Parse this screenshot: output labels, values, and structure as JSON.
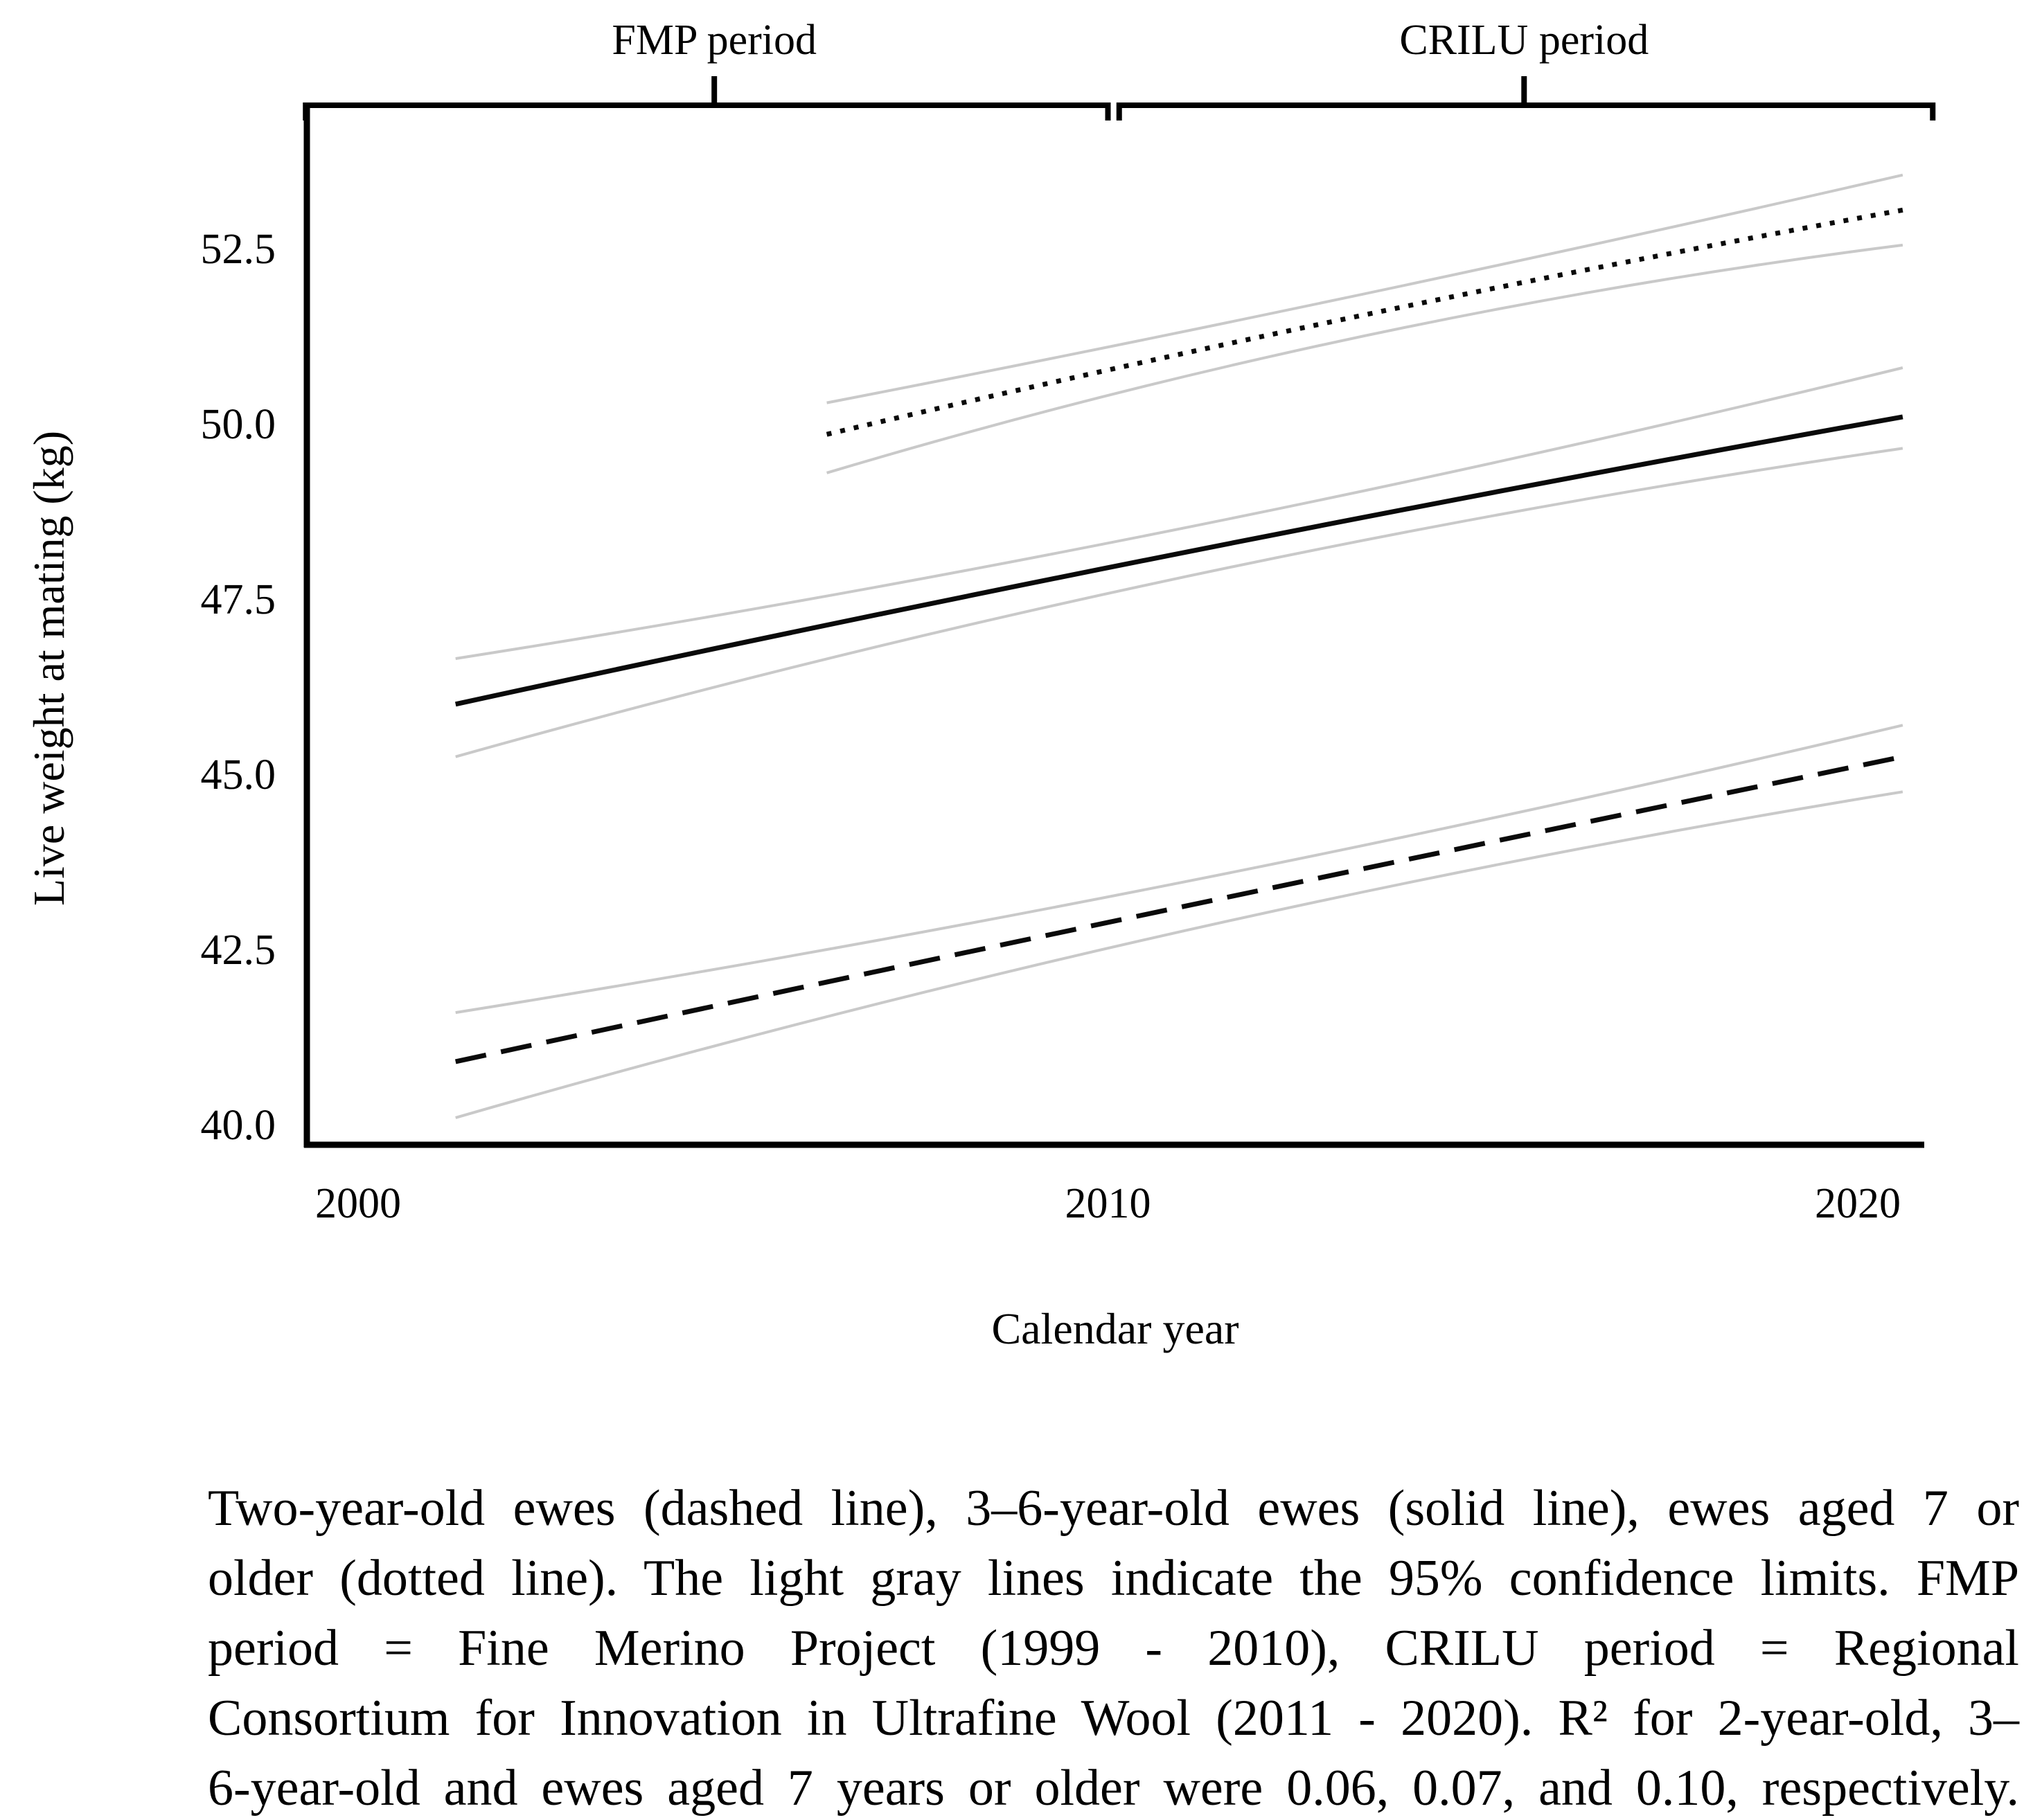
{
  "figure": {
    "background_color": "#ffffff",
    "text_color": "#000000"
  },
  "chart_data": {
    "type": "line",
    "xlabel": "Calendar year",
    "ylabel": "Live weight at mating (kg)",
    "xlim": [
      1999.3,
      2021.3
    ],
    "ylim": [
      39.7,
      54.5
    ],
    "grid": false,
    "legend": "none (line styles explained in caption)",
    "x_ticks": [
      {
        "label": "2000",
        "value": 2000
      },
      {
        "label": "2010",
        "value": 2010
      },
      {
        "label": "2020",
        "value": 2020
      }
    ],
    "y_ticks": [
      {
        "label": "52.5",
        "value": 52.5
      },
      {
        "label": "50.0",
        "value": 50.0
      },
      {
        "label": "47.5",
        "value": 47.5
      },
      {
        "label": "45.0",
        "value": 45.0
      },
      {
        "label": "42.5",
        "value": 42.5
      },
      {
        "label": "40.0",
        "value": 40.0
      }
    ],
    "periods": [
      {
        "label": "FMP period",
        "full_name": "Fine Merino Project (1999 - 2010)",
        "year_start": 1999.3,
        "year_end": 2010.0,
        "label_year": 2004.75
      },
      {
        "label": "CRILU period",
        "full_name": "Regional Consortium for Innovation in Ultrafine Wool (2011 - 2020)",
        "year_start": 2010.15,
        "year_end": 2021.0,
        "label_year": 2015.55
      }
    ],
    "confidence_level": "95%",
    "ci_color": "#c9c9c9",
    "line_color": "#0a0a0a",
    "series": [
      {
        "name": "2-year-old ewes",
        "line_style": "dashed",
        "r_squared": 0.06,
        "x": [
          2001.3,
          2010.95,
          2020.6
        ],
        "y": [
          40.9,
          43.1,
          45.25
        ],
        "ci_upper": [
          41.6,
          43.45,
          45.7
        ],
        "ci_lower": [
          40.1,
          42.75,
          44.75
        ]
      },
      {
        "name": "3-6-year-old ewes",
        "line_style": "solid",
        "r_squared": 0.07,
        "x": [
          2001.3,
          2010.95,
          2020.6
        ],
        "y": [
          46.0,
          48.15,
          50.1
        ],
        "ci_upper": [
          46.65,
          48.5,
          50.8
        ],
        "ci_lower": [
          45.25,
          47.8,
          49.65
        ]
      },
      {
        "name": "ewes aged 7 or older",
        "line_style": "dotted",
        "r_squared": 0.1,
        "x": [
          2006.25,
          2013.4,
          2020.6
        ],
        "y": [
          49.85,
          51.55,
          53.05
        ],
        "ci_upper": [
          50.3,
          51.85,
          53.55
        ],
        "ci_lower": [
          49.3,
          51.25,
          52.55
        ]
      }
    ]
  },
  "caption": {
    "lines": [
      "Two-year-old ewes (dashed line), 3–6-year-old ewes (solid line), ewes aged 7 or",
      "older (dotted line). The light gray lines indicate the 95% confidence limits. FMP",
      "period = Fine Merino Project (1999 - 2010), CRILU period = Regional",
      "Consortium for Innovation in Ultrafine Wool (2011 - 2020). R² for 2-year-old, 3–",
      "6-year-old and ewes aged 7 years or older were 0.06, 0.07, and 0.10, respectively."
    ]
  }
}
